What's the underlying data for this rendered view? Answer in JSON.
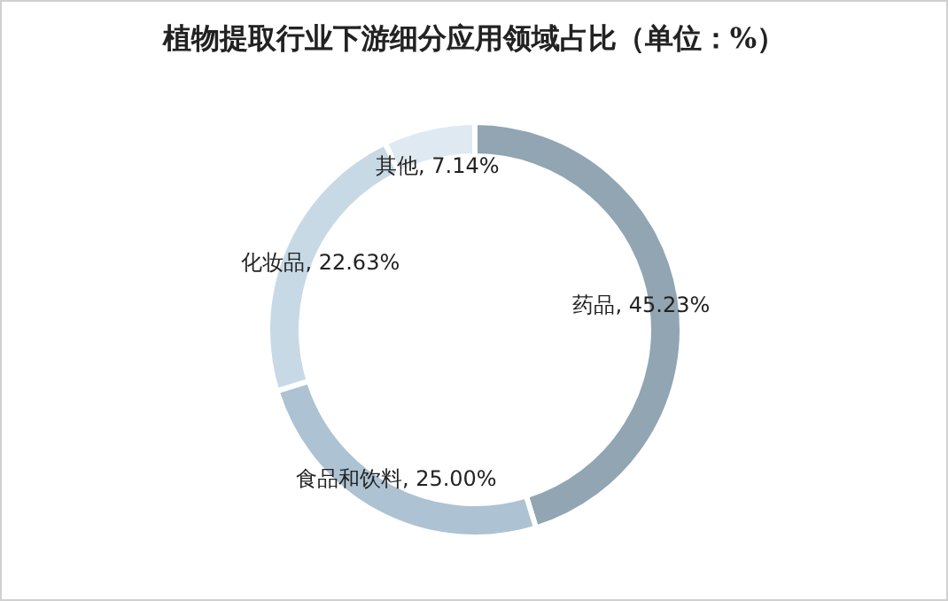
{
  "chart_data": {
    "type": "donut",
    "title": "植物提取行业下游细分应用领域占比（单位：%）",
    "categories": [
      "药品",
      "食品和饮料",
      "化妆品",
      "其他"
    ],
    "values": [
      45.23,
      25.0,
      22.63,
      7.14
    ],
    "value_labels": [
      "45.23%",
      "25.00%",
      "22.63%",
      "7.14%"
    ],
    "colors": [
      "#91a5b3",
      "#adc2d2",
      "#c8d9e6",
      "#dfe9f1"
    ]
  }
}
